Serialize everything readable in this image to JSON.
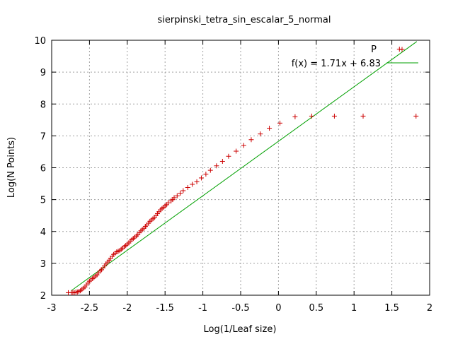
{
  "chart_data": {
    "type": "scatter",
    "title": "sierpinski_tetra_sin_escalar_5_normal",
    "xlabel": "Log(1/Leaf size)",
    "ylabel": "Log(N Points)",
    "xlim": [
      -3,
      2
    ],
    "ylim": [
      2,
      10
    ],
    "xticks": [
      "-3",
      "-2.5",
      "-2",
      "-1.5",
      "-1",
      "-0.5",
      "0",
      "0.5",
      "1",
      "1.5",
      "2"
    ],
    "yticks": [
      "2",
      "3",
      "4",
      "5",
      "6",
      "7",
      "8",
      "9",
      "10"
    ],
    "grid": true,
    "legend_position": "top-right",
    "series": [
      {
        "name": "P",
        "kind": "points",
        "marker": "plus",
        "color": "#cc0000",
        "x": [
          -2.78,
          -2.74,
          -2.72,
          -2.7,
          -2.68,
          -2.66,
          -2.64,
          -2.62,
          -2.6,
          -2.58,
          -2.56,
          -2.54,
          -2.52,
          -2.5,
          -2.48,
          -2.46,
          -2.44,
          -2.42,
          -2.4,
          -2.38,
          -2.36,
          -2.34,
          -2.32,
          -2.3,
          -2.28,
          -2.26,
          -2.24,
          -2.22,
          -2.2,
          -2.18,
          -2.16,
          -2.14,
          -2.12,
          -2.1,
          -2.08,
          -2.06,
          -2.04,
          -2.02,
          -2.0,
          -1.98,
          -1.96,
          -1.94,
          -1.92,
          -1.9,
          -1.88,
          -1.86,
          -1.84,
          -1.82,
          -1.8,
          -1.78,
          -1.76,
          -1.74,
          -1.72,
          -1.7,
          -1.68,
          -1.66,
          -1.64,
          -1.62,
          -1.6,
          -1.58,
          -1.56,
          -1.54,
          -1.52,
          -1.5,
          -1.48,
          -1.46,
          -1.42,
          -1.4,
          -1.38,
          -1.34,
          -1.3,
          -1.26,
          -1.2,
          -1.14,
          -1.08,
          -1.02,
          -0.96,
          -0.9,
          -0.82,
          -0.74,
          -0.66,
          -0.56,
          -0.46,
          -0.36,
          -0.24,
          -0.12,
          0.02,
          0.22,
          0.44,
          0.74,
          1.12,
          1.6,
          1.82
        ],
        "y": [
          2.08,
          2.08,
          2.08,
          2.08,
          2.1,
          2.1,
          2.12,
          2.14,
          2.18,
          2.22,
          2.26,
          2.32,
          2.38,
          2.44,
          2.48,
          2.52,
          2.56,
          2.6,
          2.64,
          2.7,
          2.76,
          2.8,
          2.86,
          2.92,
          2.98,
          3.04,
          3.1,
          3.16,
          3.22,
          3.28,
          3.32,
          3.36,
          3.38,
          3.4,
          3.44,
          3.48,
          3.52,
          3.56,
          3.6,
          3.64,
          3.7,
          3.74,
          3.78,
          3.82,
          3.86,
          3.9,
          3.96,
          4.02,
          4.06,
          4.1,
          4.16,
          4.2,
          4.26,
          4.32,
          4.36,
          4.4,
          4.44,
          4.5,
          4.56,
          4.62,
          4.68,
          4.72,
          4.76,
          4.8,
          4.84,
          4.9,
          4.96,
          5.0,
          5.06,
          5.12,
          5.2,
          5.28,
          5.38,
          5.48,
          5.56,
          5.68,
          5.8,
          5.92,
          6.06,
          6.2,
          6.36,
          6.52,
          6.7,
          6.88,
          7.06,
          7.24,
          7.4,
          7.6,
          7.62,
          7.62,
          7.62,
          9.72,
          7.62
        ]
      },
      {
        "name": "f(x) = 1.71x + 6.83",
        "kind": "line",
        "color": "#00a000",
        "slope": 1.71,
        "intercept": 6.83,
        "x_range": [
          -2.74,
          1.83
        ]
      }
    ]
  }
}
